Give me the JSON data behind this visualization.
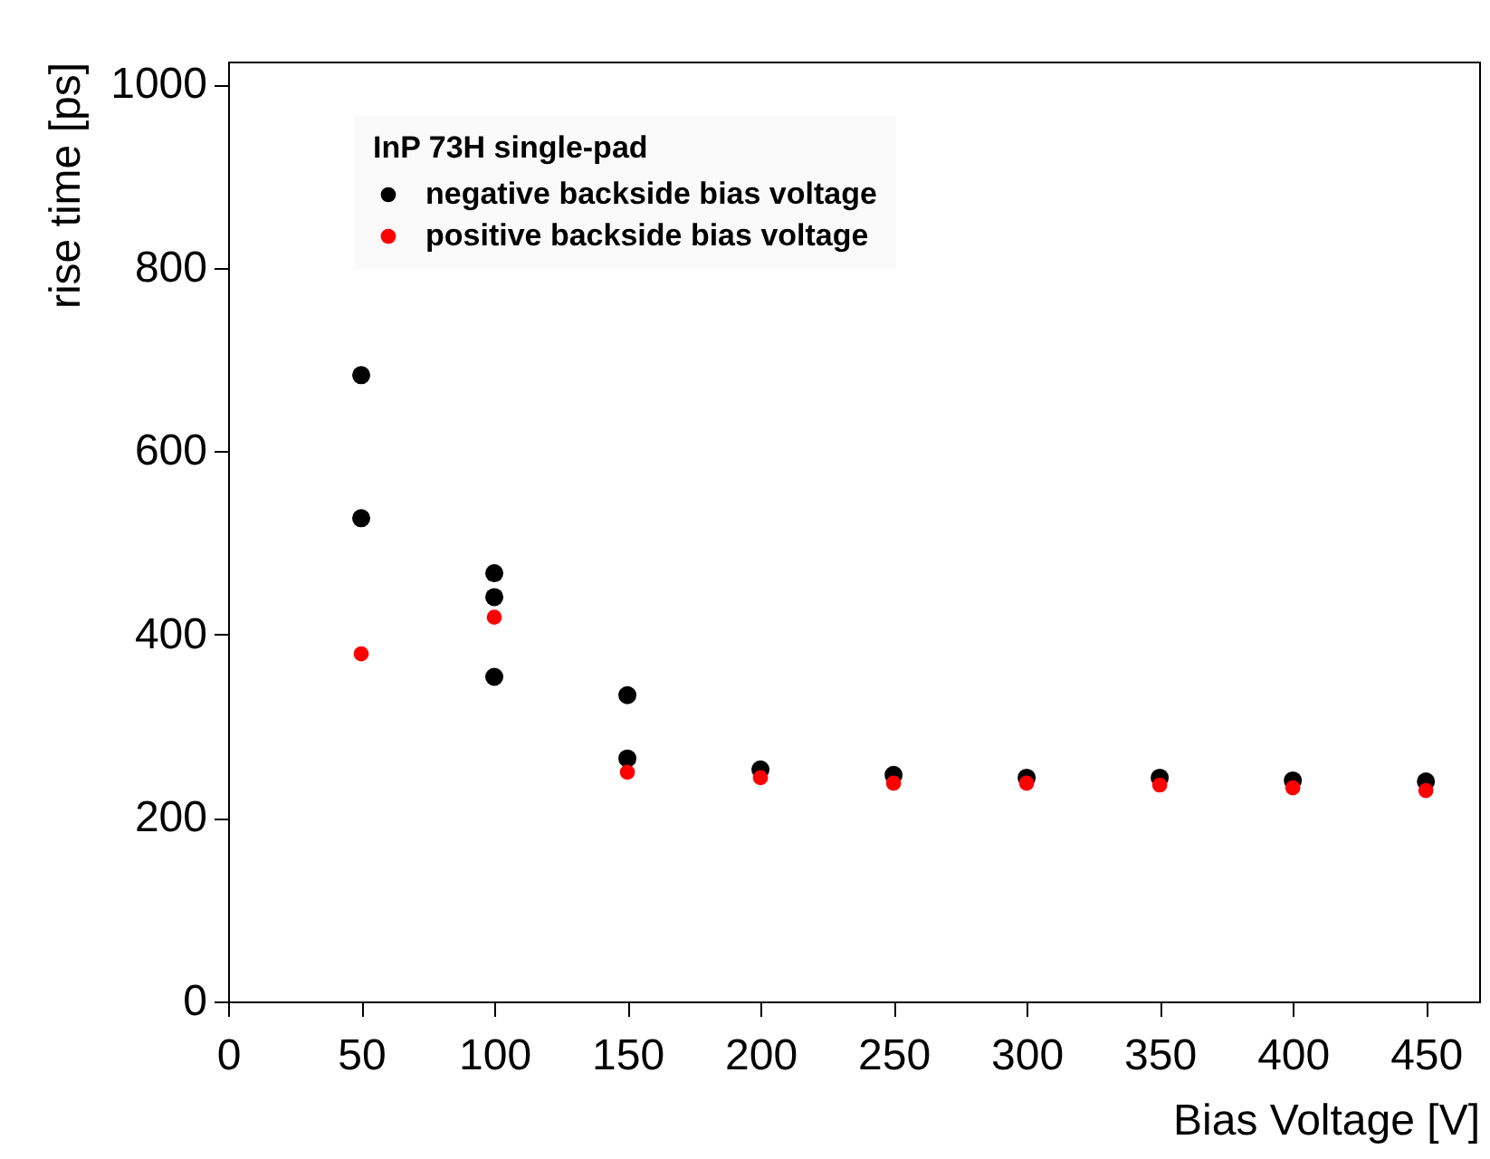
{
  "chart_data": {
    "type": "scatter",
    "xlabel": "Bias Voltage [V]",
    "ylabel": "rise time [ps]",
    "legend_title": "InP 73H single-pad",
    "xlim": [
      0,
      470
    ],
    "ylim": [
      0,
      1025
    ],
    "xticks": [
      0,
      50,
      100,
      150,
      200,
      250,
      300,
      350,
      400,
      450
    ],
    "yticks": [
      0,
      200,
      400,
      600,
      800,
      1000
    ],
    "series": [
      {
        "name": "negative backside bias voltage",
        "color": "#000000",
        "x": [
          50,
          50,
          100,
          100,
          100,
          150,
          150,
          200,
          250,
          300,
          350,
          400,
          450
        ],
        "values": [
          683,
          527,
          467,
          441,
          354,
          334,
          265,
          253,
          247,
          244,
          244,
          241,
          240
        ]
      },
      {
        "name": "positive backside bias voltage",
        "color": "#ff0000",
        "x": [
          50,
          100,
          150,
          200,
          250,
          300,
          350,
          400,
          450
        ],
        "values": [
          379,
          419,
          250,
          244,
          238,
          238,
          236,
          233,
          230
        ]
      }
    ],
    "marker": "circle",
    "grid": false,
    "legend": "top"
  }
}
